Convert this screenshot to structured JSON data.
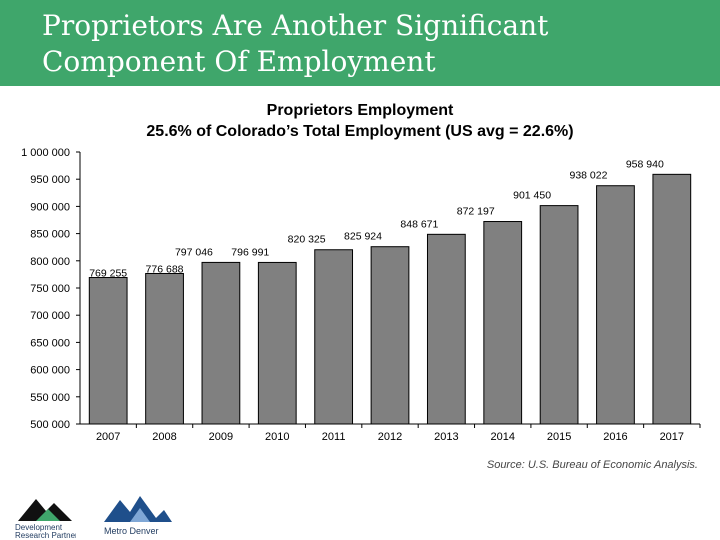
{
  "slide": {
    "title_line1": "Proprietors Are Another Significant",
    "title_line2": "Component Of Employment",
    "source": "Source: U.S. Bureau of Economic Analysis.",
    "banner_color": "#3fa66b"
  },
  "logos": {
    "logo1_line1": "Development",
    "logo1_line2": "Research Partners",
    "logo2_line1": "Metro Denver"
  },
  "chart_data": {
    "type": "bar",
    "title": "Proprietors Employment",
    "subtitle": "25.6% of Colorado’s Total Employment (US avg = 22.6%)",
    "categories": [
      "2007",
      "2008",
      "2009",
      "2010",
      "2011",
      "2012",
      "2013",
      "2014",
      "2015",
      "2016",
      "2017"
    ],
    "values": [
      769255,
      776688,
      797046,
      796991,
      820325,
      825924,
      848671,
      872197,
      901450,
      938022,
      958940
    ],
    "value_labels": [
      "769 255",
      "776 688",
      "797 046",
      "796 991",
      "820 325",
      "825 924",
      "848 671",
      "872 197",
      "901 450",
      "938 022",
      "958 940"
    ],
    "ylim": [
      500000,
      1000000
    ],
    "yticks": [
      500000,
      550000,
      600000,
      650000,
      700000,
      750000,
      800000,
      850000,
      900000,
      950000,
      1000000
    ],
    "ytick_labels": [
      "500 000",
      "550 000",
      "600 000",
      "650 000",
      "700 000",
      "750 000",
      "800 000",
      "850 000",
      "900 000",
      "950 000",
      "1 000 000"
    ],
    "bar_color": "#808080",
    "grid": false,
    "legend": "none"
  }
}
